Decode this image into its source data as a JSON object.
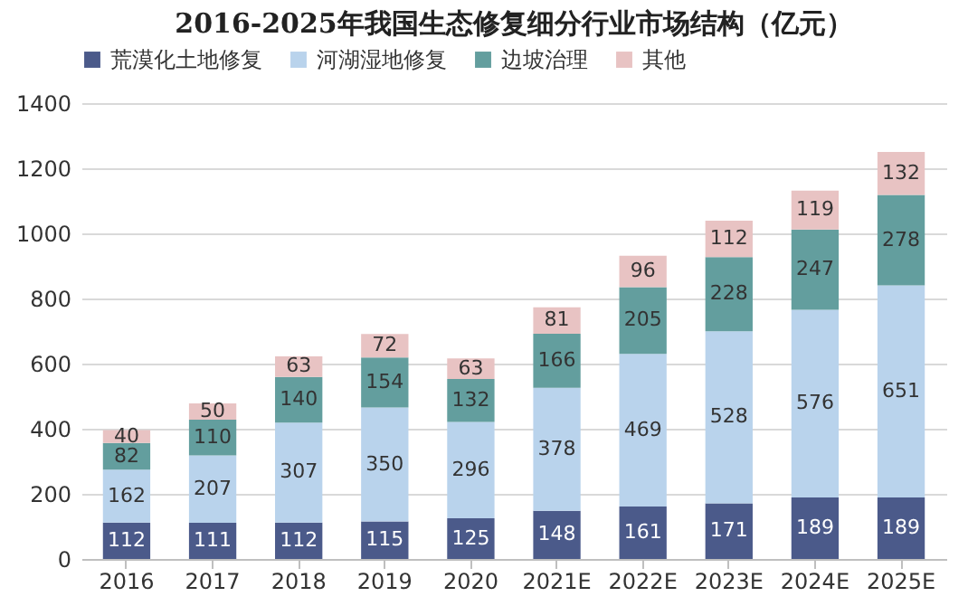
{
  "chart_data": {
    "type": "bar",
    "title": "2016-2025年我国生态修复细分行业市场结构（亿元）",
    "stacked": true,
    "data_labels": true,
    "legend": "top",
    "grid": "y",
    "categories": [
      "2016",
      "2017",
      "2018",
      "2019",
      "2020",
      "2021E",
      "2022E",
      "2023E",
      "2024E",
      "2025E"
    ],
    "ylim": [
      0,
      1400
    ],
    "yticks": [
      0,
      200,
      400,
      600,
      800,
      1000,
      1200,
      1400
    ],
    "series": [
      {
        "name": "荒漠化土地修复",
        "color": "#4b5a8a",
        "values": [
          112,
          111,
          112,
          115,
          125,
          148,
          161,
          171,
          189,
          189
        ]
      },
      {
        "name": "河湖湿地修复",
        "color": "#b9d3ec",
        "values": [
          162,
          207,
          307,
          350,
          296,
          378,
          469,
          528,
          576,
          651
        ]
      },
      {
        "name": "边坡治理",
        "color": "#639e9e",
        "values": [
          82,
          110,
          140,
          154,
          132,
          166,
          205,
          228,
          247,
          278
        ]
      },
      {
        "name": "其他",
        "color": "#e8c3c3",
        "values": [
          40,
          50,
          63,
          72,
          63,
          81,
          96,
          112,
          119,
          132
        ]
      }
    ]
  }
}
